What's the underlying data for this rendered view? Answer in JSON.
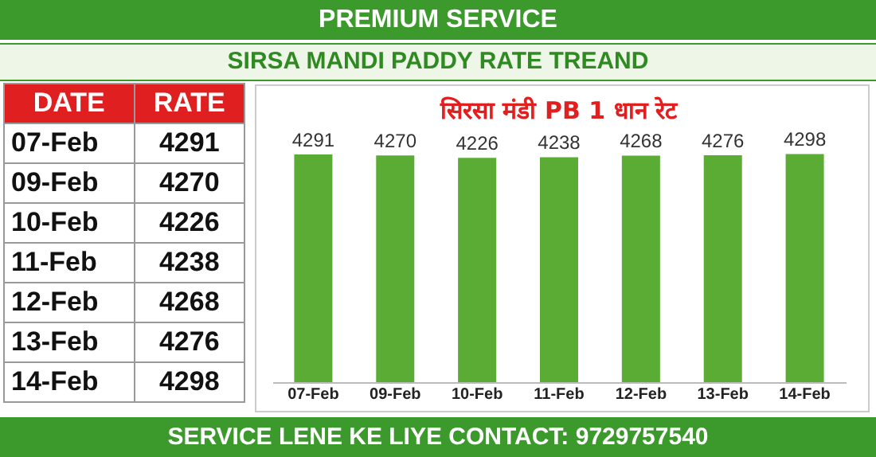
{
  "chart_data": [
    {
      "type": "other",
      "categories": [
        "07-Feb",
        "09-Feb",
        "10-Feb",
        "11-Feb",
        "12-Feb",
        "13-Feb",
        "14-Feb"
      ],
      "values": [
        4291,
        4270,
        4226,
        4238,
        4268,
        4276,
        4298
      ],
      "data_labels": true,
      "annotations": [
        "DATE",
        "RATE"
      ]
    },
    {
      "type": "bar",
      "title": "सिरसा मंडी PB 1 धान रेट",
      "subtitle": "SIRSA MANDI PADDY RATE TREAND",
      "categories": [
        "07-Feb",
        "09-Feb",
        "10-Feb",
        "11-Feb",
        "12-Feb",
        "13-Feb",
        "14-Feb"
      ],
      "values": [
        4291,
        4270,
        4226,
        4238,
        4268,
        4276,
        4298
      ],
      "color": "#5aac35",
      "data_labels": true,
      "annotations": [
        "PREMIUM SERVICE",
        "SERVICE LENE KE LIYE CONTACT: 9729757540"
      ]
    }
  ]
}
